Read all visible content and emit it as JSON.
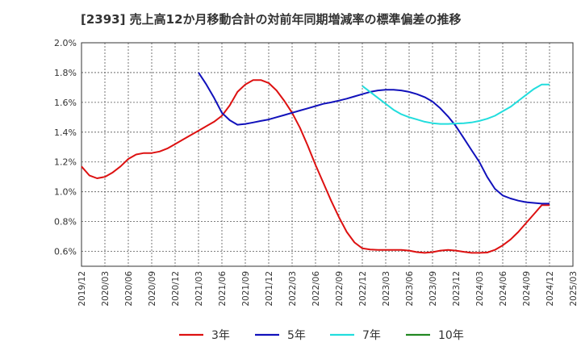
{
  "title": "[2393]  売上高12か月移動合計の対前年同期増減率の標準偏差の推移",
  "chart_data": {
    "type": "line",
    "title": "[2393]  売上高12か月移動合計の対前年同期増減率の標準偏差の推移",
    "xlabel": "",
    "ylabel": "",
    "ylim": [
      0.5,
      2.0
    ],
    "y_ticks": [
      0.6,
      0.8,
      1.0,
      1.2,
      1.4,
      1.6,
      1.8,
      2.0
    ],
    "y_tick_labels": [
      "0.6%",
      "0.8%",
      "1.0%",
      "1.2%",
      "1.4%",
      "1.6%",
      "1.8%",
      "2.0%"
    ],
    "x_tick_labels": [
      "2019/12",
      "2020/03",
      "2020/06",
      "2020/09",
      "2020/12",
      "2021/03",
      "2021/06",
      "2021/09",
      "2021/12",
      "2022/03",
      "2022/06",
      "2022/09",
      "2022/12",
      "2023/03",
      "2023/06",
      "2023/09",
      "2023/12",
      "2024/03",
      "2024/06",
      "2024/09",
      "2024/12",
      "2025/03"
    ],
    "grid": true,
    "legend_position": "bottom",
    "series": [
      {
        "name": "3年",
        "color": "#dd1111",
        "x": [
          "2019/12",
          "2020/01",
          "2020/02",
          "2020/03",
          "2020/04",
          "2020/05",
          "2020/06",
          "2020/07",
          "2020/08",
          "2020/09",
          "2020/10",
          "2020/11",
          "2020/12",
          "2021/01",
          "2021/02",
          "2021/03",
          "2021/04",
          "2021/05",
          "2021/06",
          "2021/07",
          "2021/08",
          "2021/09",
          "2021/10",
          "2021/11",
          "2021/12",
          "2022/01",
          "2022/02",
          "2022/03",
          "2022/04",
          "2022/05",
          "2022/06",
          "2022/07",
          "2022/08",
          "2022/09",
          "2022/10",
          "2022/11",
          "2022/12",
          "2023/01",
          "2023/02",
          "2023/03",
          "2023/04",
          "2023/05",
          "2023/06",
          "2023/07",
          "2023/08",
          "2023/09",
          "2023/10",
          "2023/11",
          "2023/12",
          "2024/01",
          "2024/02",
          "2024/03",
          "2024/04",
          "2024/05",
          "2024/06",
          "2024/07",
          "2024/08",
          "2024/09",
          "2024/10",
          "2024/11",
          "2024/12"
        ],
        "values": [
          1.17,
          1.11,
          1.09,
          1.1,
          1.13,
          1.17,
          1.22,
          1.25,
          1.26,
          1.26,
          1.27,
          1.29,
          1.32,
          1.35,
          1.38,
          1.41,
          1.44,
          1.47,
          1.51,
          1.58,
          1.67,
          1.72,
          1.75,
          1.75,
          1.73,
          1.68,
          1.61,
          1.53,
          1.43,
          1.31,
          1.18,
          1.06,
          0.94,
          0.83,
          0.73,
          0.66,
          0.62,
          0.612,
          0.61,
          0.61,
          0.61,
          0.61,
          0.605,
          0.595,
          0.59,
          0.595,
          0.605,
          0.61,
          0.605,
          0.597,
          0.59,
          0.59,
          0.592,
          0.61,
          0.64,
          0.68,
          0.73,
          0.79,
          0.85,
          0.91,
          0.91
        ]
      },
      {
        "name": "5年",
        "color": "#1111bb",
        "x": [
          "2021/03",
          "2021/04",
          "2021/05",
          "2021/06",
          "2021/07",
          "2021/08",
          "2021/09",
          "2021/10",
          "2021/11",
          "2021/12",
          "2022/01",
          "2022/02",
          "2022/03",
          "2022/04",
          "2022/05",
          "2022/06",
          "2022/07",
          "2022/08",
          "2022/09",
          "2022/10",
          "2022/11",
          "2022/12",
          "2023/01",
          "2023/02",
          "2023/03",
          "2023/04",
          "2023/05",
          "2023/06",
          "2023/07",
          "2023/08",
          "2023/09",
          "2023/10",
          "2023/11",
          "2023/12",
          "2024/01",
          "2024/02",
          "2024/03",
          "2024/04",
          "2024/05",
          "2024/06",
          "2024/07",
          "2024/08",
          "2024/09",
          "2024/10",
          "2024/11",
          "2024/12"
        ],
        "values": [
          1.8,
          1.72,
          1.63,
          1.53,
          1.48,
          1.45,
          1.455,
          1.465,
          1.475,
          1.485,
          1.5,
          1.515,
          1.53,
          1.545,
          1.56,
          1.575,
          1.59,
          1.6,
          1.612,
          1.625,
          1.64,
          1.655,
          1.67,
          1.68,
          1.685,
          1.685,
          1.68,
          1.67,
          1.655,
          1.635,
          1.605,
          1.56,
          1.505,
          1.44,
          1.36,
          1.28,
          1.2,
          1.1,
          1.02,
          0.975,
          0.955,
          0.94,
          0.93,
          0.925,
          0.92,
          0.92
        ]
      },
      {
        "name": "7年",
        "color": "#22dddd",
        "x": [
          "2022/12",
          "2023/01",
          "2023/02",
          "2023/03",
          "2023/04",
          "2023/05",
          "2023/06",
          "2023/07",
          "2023/08",
          "2023/09",
          "2023/10",
          "2023/11",
          "2023/12",
          "2024/01",
          "2024/02",
          "2024/03",
          "2024/04",
          "2024/05",
          "2024/06",
          "2024/07",
          "2024/08",
          "2024/09",
          "2024/10",
          "2024/11",
          "2024/12"
        ],
        "values": [
          1.71,
          1.67,
          1.63,
          1.59,
          1.55,
          1.52,
          1.5,
          1.485,
          1.47,
          1.46,
          1.455,
          1.455,
          1.458,
          1.46,
          1.465,
          1.475,
          1.49,
          1.51,
          1.54,
          1.57,
          1.61,
          1.65,
          1.69,
          1.72,
          1.72
        ]
      },
      {
        "name": "10年",
        "color": "#228822",
        "x": [],
        "values": []
      }
    ]
  }
}
